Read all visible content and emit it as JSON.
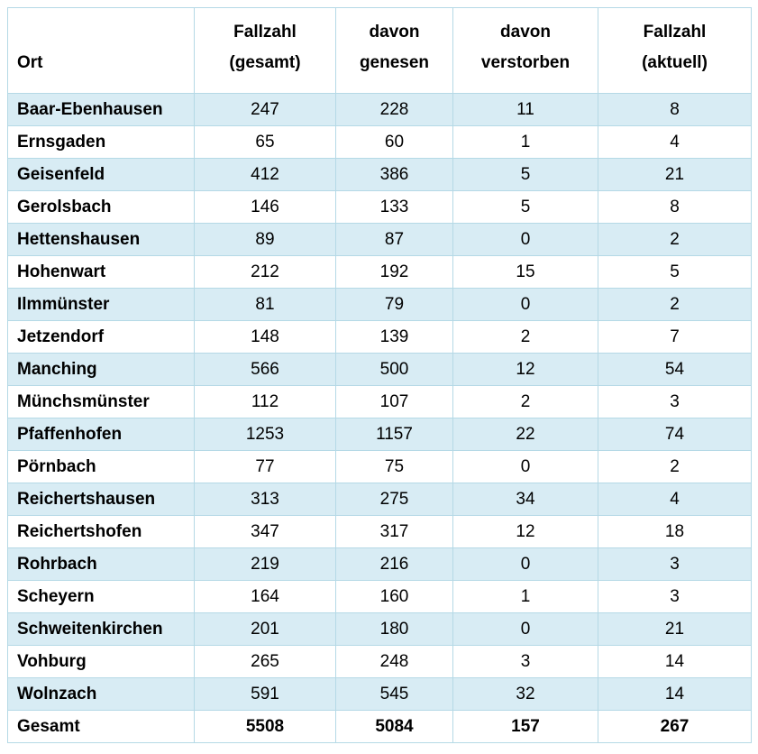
{
  "table": {
    "columns": [
      {
        "key": "ort",
        "label": "Ort"
      },
      {
        "key": "gesamt",
        "label": "Fallzahl\n(gesamt)"
      },
      {
        "key": "genesen",
        "label": "davon\ngenesen"
      },
      {
        "key": "verstorben",
        "label": "davon\nverstorben"
      },
      {
        "key": "aktuell",
        "label": "Fallzahl\n(aktuell)"
      }
    ],
    "rows": [
      {
        "ort": "Baar-Ebenhausen",
        "gesamt": 247,
        "genesen": 228,
        "verstorben": 11,
        "aktuell": 8
      },
      {
        "ort": "Ernsgaden",
        "gesamt": 65,
        "genesen": 60,
        "verstorben": 1,
        "aktuell": 4
      },
      {
        "ort": "Geisenfeld",
        "gesamt": 412,
        "genesen": 386,
        "verstorben": 5,
        "aktuell": 21
      },
      {
        "ort": "Gerolsbach",
        "gesamt": 146,
        "genesen": 133,
        "verstorben": 5,
        "aktuell": 8
      },
      {
        "ort": "Hettenshausen",
        "gesamt": 89,
        "genesen": 87,
        "verstorben": 0,
        "aktuell": 2
      },
      {
        "ort": "Hohenwart",
        "gesamt": 212,
        "genesen": 192,
        "verstorben": 15,
        "aktuell": 5
      },
      {
        "ort": "Ilmmünster",
        "gesamt": 81,
        "genesen": 79,
        "verstorben": 0,
        "aktuell": 2
      },
      {
        "ort": "Jetzendorf",
        "gesamt": 148,
        "genesen": 139,
        "verstorben": 2,
        "aktuell": 7
      },
      {
        "ort": "Manching",
        "gesamt": 566,
        "genesen": 500,
        "verstorben": 12,
        "aktuell": 54
      },
      {
        "ort": "Münchsmünster",
        "gesamt": 112,
        "genesen": 107,
        "verstorben": 2,
        "aktuell": 3
      },
      {
        "ort": "Pfaffenhofen",
        "gesamt": 1253,
        "genesen": 1157,
        "verstorben": 22,
        "aktuell": 74
      },
      {
        "ort": "Pörnbach",
        "gesamt": 77,
        "genesen": 75,
        "verstorben": 0,
        "aktuell": 2
      },
      {
        "ort": "Reichertshausen",
        "gesamt": 313,
        "genesen": 275,
        "verstorben": 34,
        "aktuell": 4
      },
      {
        "ort": "Reichertshofen",
        "gesamt": 347,
        "genesen": 317,
        "verstorben": 12,
        "aktuell": 18
      },
      {
        "ort": "Rohrbach",
        "gesamt": 219,
        "genesen": 216,
        "verstorben": 0,
        "aktuell": 3
      },
      {
        "ort": "Scheyern",
        "gesamt": 164,
        "genesen": 160,
        "verstorben": 1,
        "aktuell": 3
      },
      {
        "ort": "Schweitenkirchen",
        "gesamt": 201,
        "genesen": 180,
        "verstorben": 0,
        "aktuell": 21
      },
      {
        "ort": "Vohburg",
        "gesamt": 265,
        "genesen": 248,
        "verstorben": 3,
        "aktuell": 14
      },
      {
        "ort": "Wolnzach",
        "gesamt": 591,
        "genesen": 545,
        "verstorben": 32,
        "aktuell": 14
      }
    ],
    "total": {
      "ort": "Gesamt",
      "gesamt": 5508,
      "genesen": 5084,
      "verstorben": 157,
      "aktuell": 267
    }
  },
  "colors": {
    "row_alternate_fill": "#d8ecf4",
    "grid_border": "#b5d9e6",
    "header_rule": "#79b7cd",
    "text": "#000000"
  }
}
